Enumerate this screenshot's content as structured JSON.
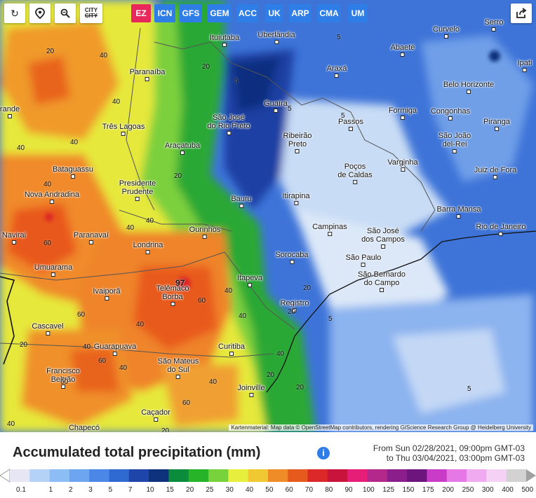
{
  "toolbar": {
    "reset_icon": "refresh-icon",
    "location_icon": "map-pin-icon",
    "zoom_icon": "zoom-icon",
    "city_label_top": "CITY",
    "city_label_bottom": "CITY",
    "share_icon": "share-icon"
  },
  "models": [
    {
      "label": "EZ",
      "active": true
    },
    {
      "label": "ICN",
      "active": false
    },
    {
      "label": "GFS",
      "active": false
    },
    {
      "label": "GEM",
      "active": false
    },
    {
      "label": "ACC",
      "active": false
    },
    {
      "label": "UK",
      "active": false
    },
    {
      "label": "ARP",
      "active": false
    },
    {
      "label": "CMA",
      "active": false
    },
    {
      "label": "UM",
      "active": false
    }
  ],
  "cities": [
    {
      "name": "Ituiutaba"
    },
    {
      "name": "Uberlândia"
    },
    {
      "name": "Curvelo"
    },
    {
      "name": "Serro"
    },
    {
      "name": "Paranaíba"
    },
    {
      "name": "Araxá"
    },
    {
      "name": "Abaeté"
    },
    {
      "name": "Ipati"
    },
    {
      "name": "Belo Horizonte"
    },
    {
      "name": "Guaíra"
    },
    {
      "name": "São José\ndo Rio Preto"
    },
    {
      "name": "Formiga"
    },
    {
      "name": "Congonhas"
    },
    {
      "name": "Três Lagoas"
    },
    {
      "name": "Passos"
    },
    {
      "name": "Piranga"
    },
    {
      "name": "São João\ndel-Rei"
    },
    {
      "name": "Ribeirão\nPreto"
    },
    {
      "name": "Araçatuba"
    },
    {
      "name": "Poços\nde Caldas"
    },
    {
      "name": "Varginha"
    },
    {
      "name": "Juiz de Fora"
    },
    {
      "name": "Bataguassu"
    },
    {
      "name": "Presidente\nPrudente"
    },
    {
      "name": "Nova Andradina"
    },
    {
      "name": "Bauru"
    },
    {
      "name": "Itirapina"
    },
    {
      "name": "Barra Mansa"
    },
    {
      "name": "Navirai"
    },
    {
      "name": "Paranavaí"
    },
    {
      "name": "Ourinhos"
    },
    {
      "name": "Campinas"
    },
    {
      "name": "São José\ndos Campos"
    },
    {
      "name": "Rio de Janeiro"
    },
    {
      "name": "Londrina"
    },
    {
      "name": "Sorocaba"
    },
    {
      "name": "São Paulo"
    },
    {
      "name": "Umuarama"
    },
    {
      "name": "São Bernardo\ndo Campo"
    },
    {
      "name": "Itapeva"
    },
    {
      "name": "Ivaiporã"
    },
    {
      "name": "Telêmaco\nBorba"
    },
    {
      "name": "Registro"
    },
    {
      "name": "Cascavel"
    },
    {
      "name": "Guarapuava"
    },
    {
      "name": "Curitiba"
    },
    {
      "name": "São Mateus\ndo Sul"
    },
    {
      "name": "Francisco\nBeltrão"
    },
    {
      "name": "Joinville"
    },
    {
      "name": "Caçador"
    },
    {
      "name": "Chapecó"
    },
    {
      "name": "rande"
    }
  ],
  "isolines": [
    "20",
    "40",
    "40",
    "20",
    "5",
    "5",
    "5",
    "40",
    "40",
    "40",
    "60",
    "40",
    "40",
    "60",
    "20",
    "5",
    "5",
    "40",
    "20",
    "40",
    "20",
    "40",
    "60",
    "60",
    "40",
    "40",
    "20",
    "20",
    "5",
    "20",
    "40",
    "60",
    "20",
    "40",
    "40",
    "60"
  ],
  "peak_value": "97",
  "attribution": "Kartenmaterial: Map data © OpenStreetMap contributors, rendering GIScience Research Group @ Heidelberg University",
  "legend": {
    "title": "Accumulated total precipitation (mm)",
    "info_icon": "info-icon",
    "info_glyph": "i",
    "time_from": "From Sun 02/28/2021, 09:00pm GMT-03",
    "time_to": "to Thu 03/04/2021, 03:00pm GMT-03",
    "scale": [
      {
        "label": "0.1",
        "color": "#e6e6f5"
      },
      {
        "label": "1",
        "color": "#b4d2f5"
      },
      {
        "label": "2",
        "color": "#8cbef5"
      },
      {
        "label": "3",
        "color": "#6ea5f0"
      },
      {
        "label": "5",
        "color": "#4b87e6"
      },
      {
        "label": "7",
        "color": "#2f69d2"
      },
      {
        "label": "10",
        "color": "#1e46aa"
      },
      {
        "label": "15",
        "color": "#0f327d"
      },
      {
        "label": "20",
        "color": "#0a8c3c"
      },
      {
        "label": "25",
        "color": "#28b428"
      },
      {
        "label": "30",
        "color": "#78d23c"
      },
      {
        "label": "40",
        "color": "#e6f03c"
      },
      {
        "label": "50",
        "color": "#f0c832"
      },
      {
        "label": "60",
        "color": "#f08c28"
      },
      {
        "label": "70",
        "color": "#e65a1e"
      },
      {
        "label": "80",
        "color": "#dc2828"
      },
      {
        "label": "90",
        "color": "#c8143c"
      },
      {
        "label": "100",
        "color": "#e61e78"
      },
      {
        "label": "125",
        "color": "#b4288c"
      },
      {
        "label": "150",
        "color": "#8c1e8c"
      },
      {
        "label": "175",
        "color": "#6e147d"
      },
      {
        "label": "200",
        "color": "#c83cc8"
      },
      {
        "label": "250",
        "color": "#e678e6"
      },
      {
        "label": "300",
        "color": "#f0aaf0"
      },
      {
        "label": "400",
        "color": "#f5d2f5"
      },
      {
        "label": "500",
        "color": "#d2d2d2"
      }
    ]
  }
}
